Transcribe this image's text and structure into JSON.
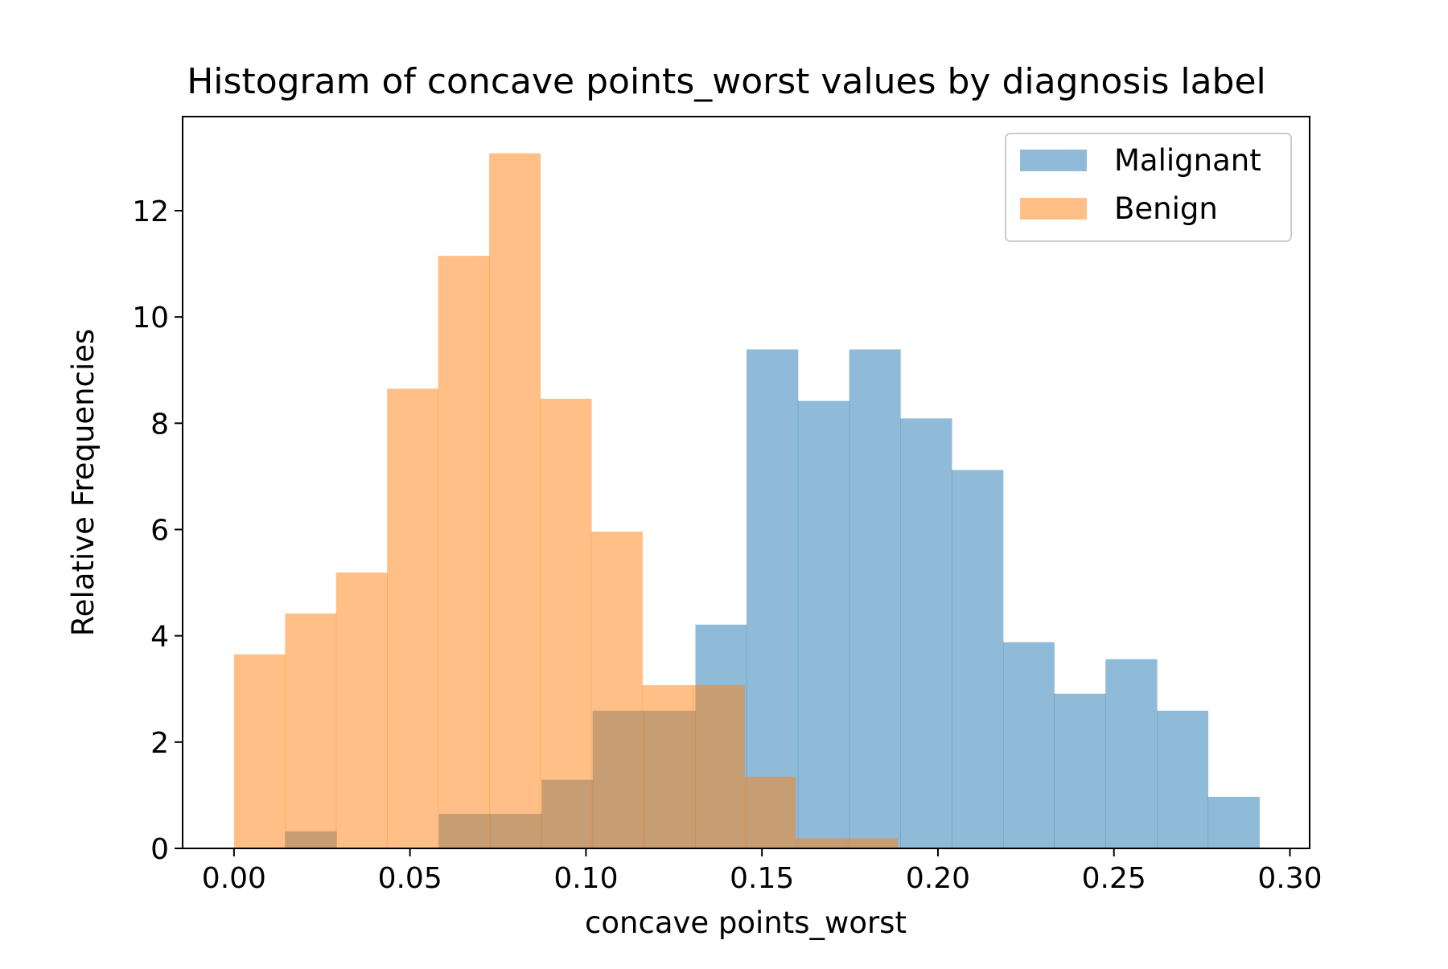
{
  "chart_data": {
    "type": "histogram",
    "title": "Histogram of concave points_worst values by diagnosis label",
    "xlabel": "concave points_worst",
    "ylabel": "Relative Frequencies",
    "xlim": [
      -0.0146,
      0.3056
    ],
    "ylim": [
      0,
      13.77
    ],
    "xticks": [
      0.0,
      0.05,
      0.1,
      0.15,
      0.2,
      0.25,
      0.3
    ],
    "xtick_labels": [
      "0.00",
      "0.05",
      "0.10",
      "0.15",
      "0.20",
      "0.25",
      "0.30"
    ],
    "yticks": [
      0,
      2,
      4,
      6,
      8,
      10,
      12
    ],
    "ytick_labels": [
      "0",
      "2",
      "4",
      "6",
      "8",
      "10",
      "12"
    ],
    "grid": false,
    "legend_position": "upper right",
    "series": [
      {
        "name": "Malignant",
        "color": "#1f77b4",
        "opacity": 0.5,
        "bin_edges": [
          0.0145,
          0.0291,
          0.0437,
          0.0582,
          0.0728,
          0.0874,
          0.1019,
          0.1165,
          0.1311,
          0.1456,
          0.1602,
          0.1748,
          0.1893,
          0.2039,
          0.2185,
          0.233,
          0.2476,
          0.2622,
          0.2767,
          0.2913
        ],
        "values": [
          0.32,
          0,
          0,
          0.65,
          0.65,
          1.29,
          2.59,
          2.59,
          4.21,
          9.39,
          8.42,
          9.39,
          8.09,
          7.12,
          3.88,
          2.91,
          3.56,
          2.59,
          0.97
        ]
      },
      {
        "name": "Benign",
        "color": "#ff7f0e",
        "opacity": 0.5,
        "bin_edges": [
          0.0,
          0.0145,
          0.029,
          0.0435,
          0.058,
          0.0725,
          0.087,
          0.1015,
          0.116,
          0.1305,
          0.145,
          0.1595,
          0.174,
          0.1885
        ],
        "values": [
          3.65,
          4.42,
          5.19,
          8.65,
          11.15,
          13.08,
          8.46,
          5.96,
          3.07,
          3.07,
          1.35,
          0.19,
          0.19
        ]
      }
    ]
  }
}
